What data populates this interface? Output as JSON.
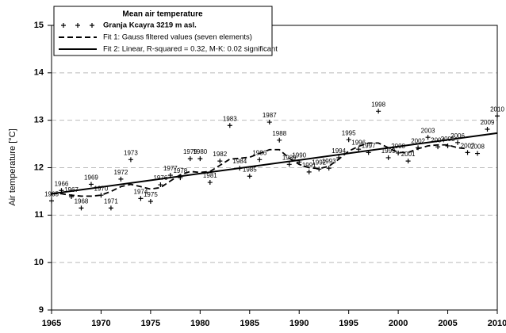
{
  "chart_data": {
    "type": "line",
    "legend_title": "Mean air temperature",
    "y_label": "Air temperature [°C]",
    "x": [
      1965,
      1966,
      1967,
      1968,
      1969,
      1970,
      1971,
      1972,
      1973,
      1974,
      1975,
      1976,
      1977,
      1978,
      1979,
      1980,
      1981,
      1982,
      1983,
      1984,
      1985,
      1986,
      1987,
      1988,
      1989,
      1990,
      1991,
      1992,
      1993,
      1994,
      1995,
      1996,
      1997,
      1998,
      1999,
      2000,
      2001,
      2002,
      2003,
      2004,
      2005,
      2006,
      2007,
      2008,
      2009,
      2010
    ],
    "series": [
      {
        "name": "Granja Kcayra 3219 m asl.",
        "color": "#000000",
        "marker": "+",
        "values": [
          11.3,
          11.52,
          11.39,
          11.15,
          11.65,
          11.42,
          11.15,
          11.76,
          12.17,
          11.35,
          11.29,
          11.64,
          11.84,
          11.79,
          12.19,
          12.19,
          11.69,
          12.14,
          12.89,
          11.99,
          11.82,
          12.17,
          12.96,
          12.58,
          12.07,
          12.12,
          11.91,
          11.97,
          11.99,
          12.21,
          12.59,
          12.39,
          12.32,
          13.19,
          12.21,
          12.31,
          12.14,
          12.42,
          12.64,
          12.44,
          12.46,
          12.53,
          12.32,
          12.3,
          12.81,
          13.09
        ]
      },
      {
        "name": "Fit 1: Gauss filtered values (seven elements)",
        "color": "#000000",
        "dash": true,
        "values": [
          11.45,
          11.45,
          11.42,
          11.4,
          11.4,
          11.42,
          11.5,
          11.6,
          11.65,
          11.6,
          11.55,
          11.58,
          11.72,
          11.85,
          11.92,
          11.9,
          11.92,
          12.05,
          12.18,
          12.2,
          12.22,
          12.3,
          12.38,
          12.38,
          12.2,
          12.07,
          12.0,
          11.98,
          12.03,
          12.18,
          12.35,
          12.45,
          12.52,
          12.52,
          12.42,
          12.32,
          12.32,
          12.4,
          12.46,
          12.48,
          12.48,
          12.42,
          12.4,
          null,
          null,
          null
        ]
      },
      {
        "name": "Fit 2: Linear, R-squared = 0.32, M-K: 0.02 significant",
        "color": "#000000",
        "dash": false,
        "x": [
          1965,
          2010
        ],
        "values": [
          11.45,
          12.73
        ]
      }
    ],
    "xlim": [
      1965,
      2010
    ],
    "xticks": [
      1965,
      1970,
      1975,
      1980,
      1985,
      1990,
      1995,
      2000,
      2005,
      2010
    ],
    "ylim": [
      9,
      15
    ],
    "yticks": [
      9,
      10,
      11,
      12,
      13,
      14,
      15
    ],
    "grid": true
  }
}
